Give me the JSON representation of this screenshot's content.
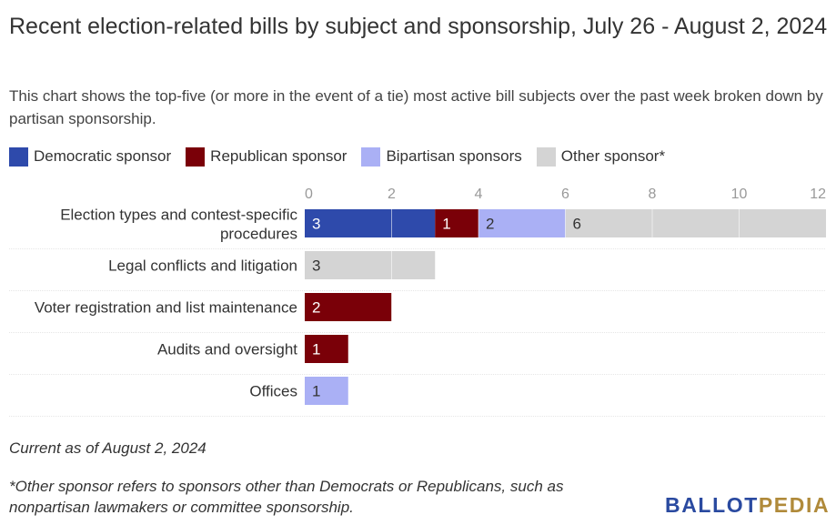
{
  "title": "Recent election-related bills by subject and sponsorship, July 26 - August 2, 2024",
  "subtitle": "This chart shows the top-five (or more in the event of a tie) most active bill subjects over the past week broken down by partisan sponsorship.",
  "legend": [
    {
      "label": "Democratic sponsor",
      "color": "#2e4aab"
    },
    {
      "label": "Republican sponsor",
      "color": "#7a0008"
    },
    {
      "label": "Bipartisan sponsors",
      "color": "#aab0f5"
    },
    {
      "label": "Other sponsor*",
      "color": "#d4d4d4"
    }
  ],
  "chart_data": {
    "type": "bar",
    "orientation": "horizontal",
    "stacked": true,
    "categories": [
      "Election types and contest-specific procedures",
      "Legal conflicts and litigation",
      "Voter registration and list maintenance",
      "Audits and oversight",
      "Offices"
    ],
    "series": [
      {
        "name": "Democratic sponsor",
        "color": "#2e4aab",
        "values": [
          3,
          0,
          0,
          0,
          0
        ]
      },
      {
        "name": "Republican sponsor",
        "color": "#7a0008",
        "values": [
          1,
          0,
          2,
          1,
          0
        ]
      },
      {
        "name": "Bipartisan sponsors",
        "color": "#aab0f5",
        "values": [
          2,
          0,
          0,
          0,
          1
        ]
      },
      {
        "name": "Other sponsor*",
        "color": "#d4d4d4",
        "values": [
          6,
          3,
          0,
          0,
          0
        ]
      }
    ],
    "xlim": [
      0,
      12
    ],
    "xticks": [
      0,
      2,
      4,
      6,
      8,
      10,
      12
    ],
    "axis_position": "top",
    "grid": true
  },
  "notes": {
    "date": "Current as of August 2, 2024",
    "footnote": "*Other sponsor refers to sponsors other than Democrats or Republicans, such as nonpartisan lawmakers or committee sponsorship."
  },
  "logo": {
    "part1": "BALLOT",
    "part2": "PEDIA"
  }
}
